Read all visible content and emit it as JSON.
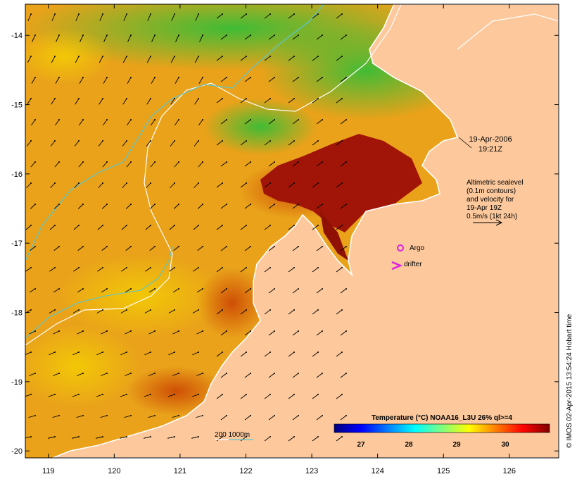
{
  "map": {
    "lon_range": [
      118.65,
      126.75
    ],
    "lat_range": [
      -20.1,
      -13.55
    ],
    "lon_ticks": [
      "119",
      "120",
      "121",
      "122",
      "123",
      "124",
      "125",
      "126"
    ],
    "lat_ticks": [
      "-14",
      "-15",
      "-16",
      "-17",
      "-18",
      "-19",
      "-20"
    ],
    "land_color": "#fcc89c"
  },
  "annotations": {
    "date": "19-Apr-2006",
    "time": "19:21Z",
    "sealevel_lines": [
      "Altimetric sealevel",
      "(0.1m contours)",
      "and velocity for",
      "19-Apr 19Z",
      "0.5m/s (1kt 24h)"
    ],
    "argo_label": "Argo",
    "drifter_label": "drifter",
    "depth_label": "200  1000m",
    "credit": "© IMOS 02-Apr-2015 13:54:24 Hobart time"
  },
  "colorbar": {
    "title": "Temperature (°C) NOAA16_L3U 26% ql>=4",
    "ticks": [
      "27",
      "28",
      "29",
      "30"
    ],
    "colors": [
      "#00007f",
      "#0000ff",
      "#007fff",
      "#00ffff",
      "#7fff7f",
      "#ffff00",
      "#ff7f00",
      "#ff0000",
      "#7f0000"
    ]
  }
}
